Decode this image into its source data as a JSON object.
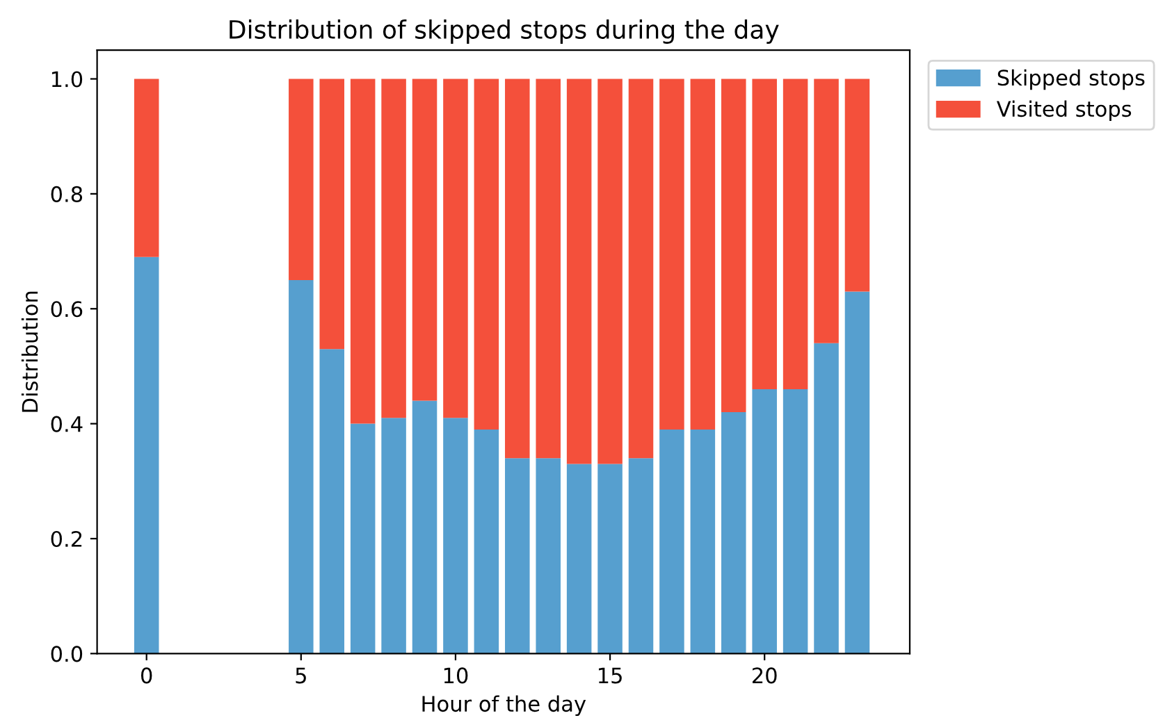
{
  "chart_data": {
    "type": "bar",
    "stacked": true,
    "title": "Distribution of skipped stops during the day",
    "xlabel": "Hour of the day",
    "ylabel": "Distribution",
    "x": [
      0,
      5,
      6,
      7,
      8,
      9,
      10,
      11,
      12,
      13,
      14,
      15,
      16,
      17,
      18,
      19,
      20,
      21,
      22,
      23
    ],
    "series": [
      {
        "name": "Skipped stops",
        "color": "#569fcf",
        "values": [
          0.69,
          0.65,
          0.53,
          0.4,
          0.41,
          0.44,
          0.41,
          0.39,
          0.34,
          0.34,
          0.33,
          0.33,
          0.34,
          0.39,
          0.39,
          0.42,
          0.46,
          0.46,
          0.54,
          0.63
        ]
      },
      {
        "name": "Visited stops",
        "color": "#f4503b",
        "values": [
          0.31,
          0.35,
          0.47,
          0.6,
          0.59,
          0.56,
          0.59,
          0.61,
          0.66,
          0.66,
          0.67,
          0.67,
          0.66,
          0.61,
          0.61,
          0.58,
          0.54,
          0.54,
          0.46,
          0.37
        ]
      }
    ],
    "xlim": [
      -1.6,
      24.7
    ],
    "xticks": [
      0,
      5,
      10,
      15,
      20
    ],
    "ylim": [
      0,
      1.05
    ],
    "yticks": [
      {
        "value": 0,
        "label": "0.0"
      },
      {
        "value": 0.2,
        "label": "0.2"
      },
      {
        "value": 0.4,
        "label": "0.4"
      },
      {
        "value": 0.6,
        "label": "0.6"
      },
      {
        "value": 0.8,
        "label": "0.8"
      },
      {
        "value": 1.0,
        "label": "1.0"
      }
    ],
    "grid": false,
    "legend": "top right"
  }
}
